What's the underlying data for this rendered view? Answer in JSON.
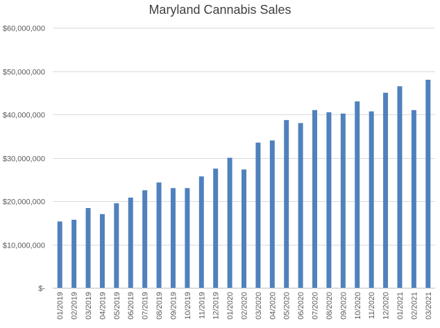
{
  "chart_data": {
    "type": "bar",
    "title": "Maryland Cannabis Sales",
    "xlabel": "",
    "ylabel": "",
    "ylim": [
      0,
      60000000
    ],
    "y_ticks": [
      0,
      10000000,
      20000000,
      30000000,
      40000000,
      50000000,
      60000000
    ],
    "y_tick_labels": [
      "$-",
      "$10,000,000",
      "$20,000,000",
      "$30,000,000",
      "$40,000,000",
      "$50,000,000",
      "$60,000,000"
    ],
    "grid": true,
    "legend": "none",
    "bar_color": "#4f81bd",
    "categories": [
      "01/2019",
      "02/2019",
      "03/2019",
      "04/2019",
      "05/2019",
      "06/2019",
      "07/2019",
      "08/2019",
      "09/2019",
      "10/2019",
      "11/2019",
      "12/2019",
      "01/2020",
      "02/2020",
      "03/2020",
      "04/2020",
      "05/2020",
      "06/2020",
      "07/2020",
      "08/2020",
      "09/2020",
      "10/2020",
      "11/2020",
      "12/2020",
      "01/2021",
      "02/2021",
      "03/2021"
    ],
    "values": [
      15300000,
      15700000,
      18400000,
      17000000,
      19500000,
      20800000,
      22500000,
      24300000,
      23000000,
      23000000,
      25700000,
      27500000,
      30000000,
      27300000,
      33500000,
      34000000,
      38700000,
      38000000,
      41000000,
      40500000,
      40200000,
      43000000,
      40700000,
      45000000,
      46500000,
      41000000,
      48000000
    ]
  }
}
